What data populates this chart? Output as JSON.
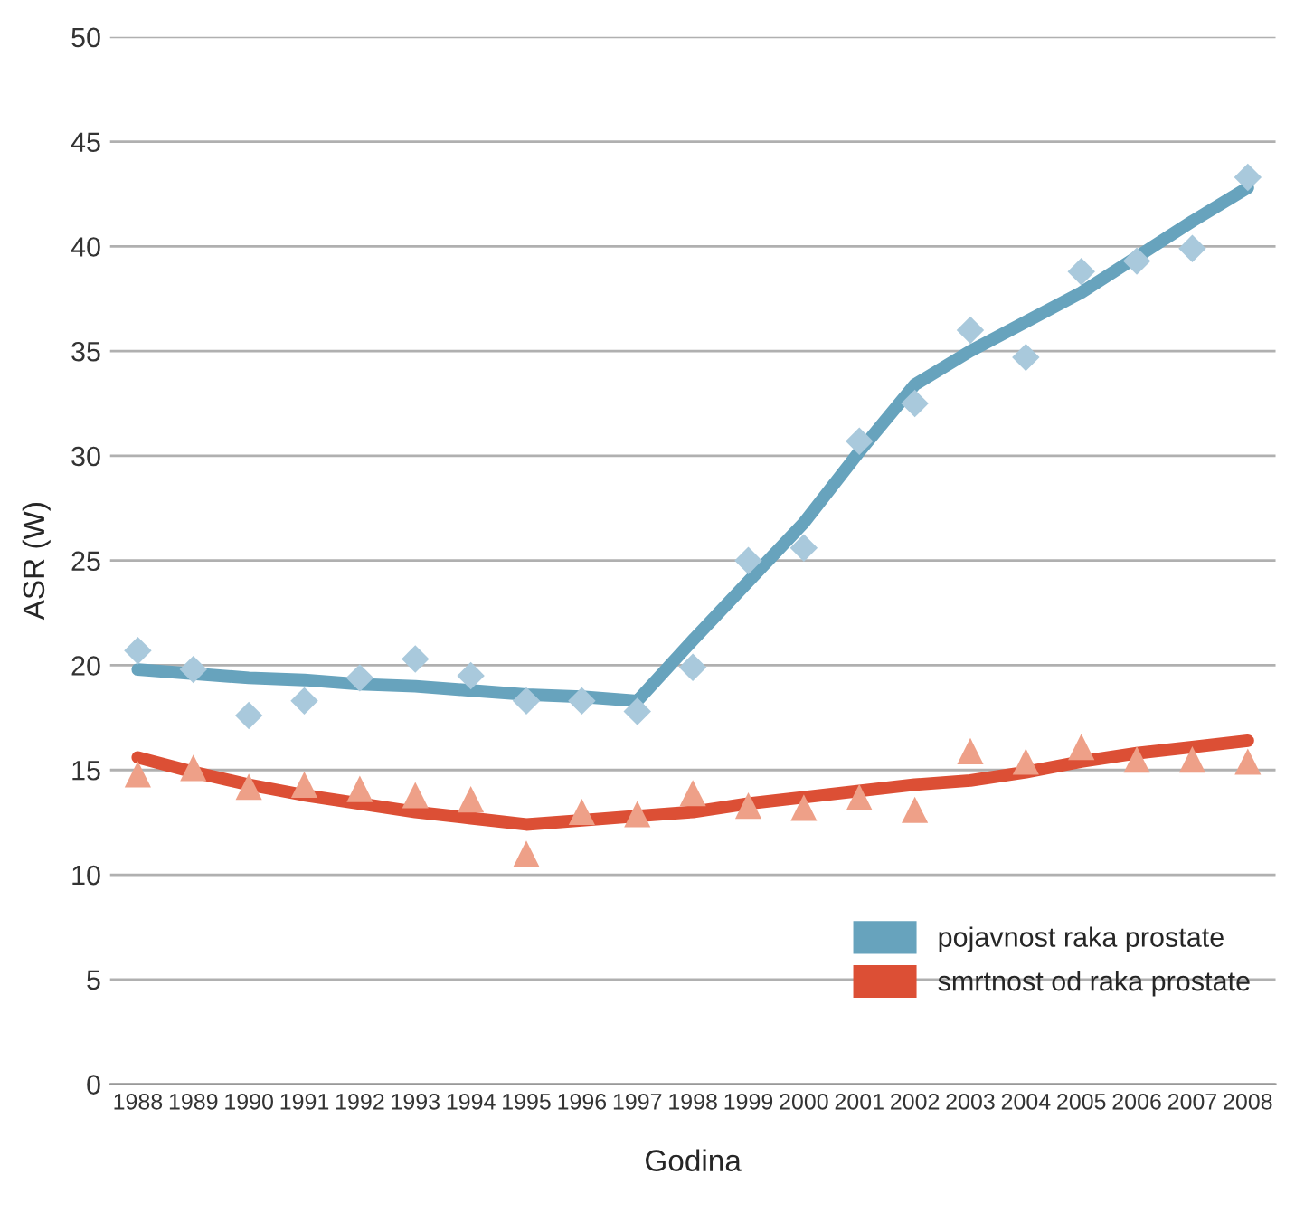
{
  "chart_data": {
    "type": "line",
    "xlabel": "Godina",
    "ylabel": "ASR (W)",
    "categories": [
      "1988",
      "1989",
      "1990",
      "1991",
      "1992",
      "1993",
      "1994",
      "1995",
      "1996",
      "1997",
      "1998",
      "1999",
      "2000",
      "2001",
      "2002",
      "2003",
      "2004",
      "2005",
      "2006",
      "2007",
      "2008"
    ],
    "ylim": [
      0,
      50
    ],
    "yticks": [
      0,
      5,
      10,
      15,
      20,
      25,
      30,
      35,
      40,
      45,
      50
    ],
    "grid": "y",
    "legend": "bottom right",
    "series": [
      {
        "type": "scatter",
        "marker": "diamond",
        "color": "#a9c9dc",
        "values": [
          20.7,
          19.8,
          17.6,
          18.3,
          19.4,
          20.3,
          19.5,
          18.3,
          18.3,
          17.8,
          19.9,
          25.0,
          25.6,
          30.7,
          32.5,
          36.0,
          34.7,
          38.8,
          39.3,
          39.9,
          43.3
        ]
      },
      {
        "type": "scatter",
        "marker": "triangle",
        "color": "#eea088",
        "values": [
          14.8,
          15.1,
          14.2,
          14.3,
          14.1,
          13.8,
          13.6,
          11.0,
          13.0,
          12.9,
          13.9,
          13.3,
          13.2,
          13.7,
          13.1,
          15.9,
          15.4,
          16.1,
          15.5,
          15.5,
          15.4
        ]
      },
      {
        "name": "pojavnost raka prostate",
        "color": "#67a3bd",
        "values": [
          19.8,
          19.6,
          19.4,
          19.3,
          19.1,
          19.0,
          18.8,
          18.6,
          18.5,
          18.3,
          21.2,
          24.0,
          26.8,
          30.2,
          33.4,
          35.0,
          36.4,
          37.8,
          39.5,
          41.2,
          42.8
        ]
      },
      {
        "name": "smrtnost od raka prostate",
        "color": "#dc4f35",
        "values": [
          15.6,
          14.9,
          14.3,
          13.8,
          13.4,
          13.0,
          12.7,
          12.4,
          12.6,
          12.8,
          13.0,
          13.4,
          13.7,
          14.0,
          14.3,
          14.5,
          14.9,
          15.4,
          15.8,
          16.1,
          16.4
        ]
      }
    ]
  }
}
